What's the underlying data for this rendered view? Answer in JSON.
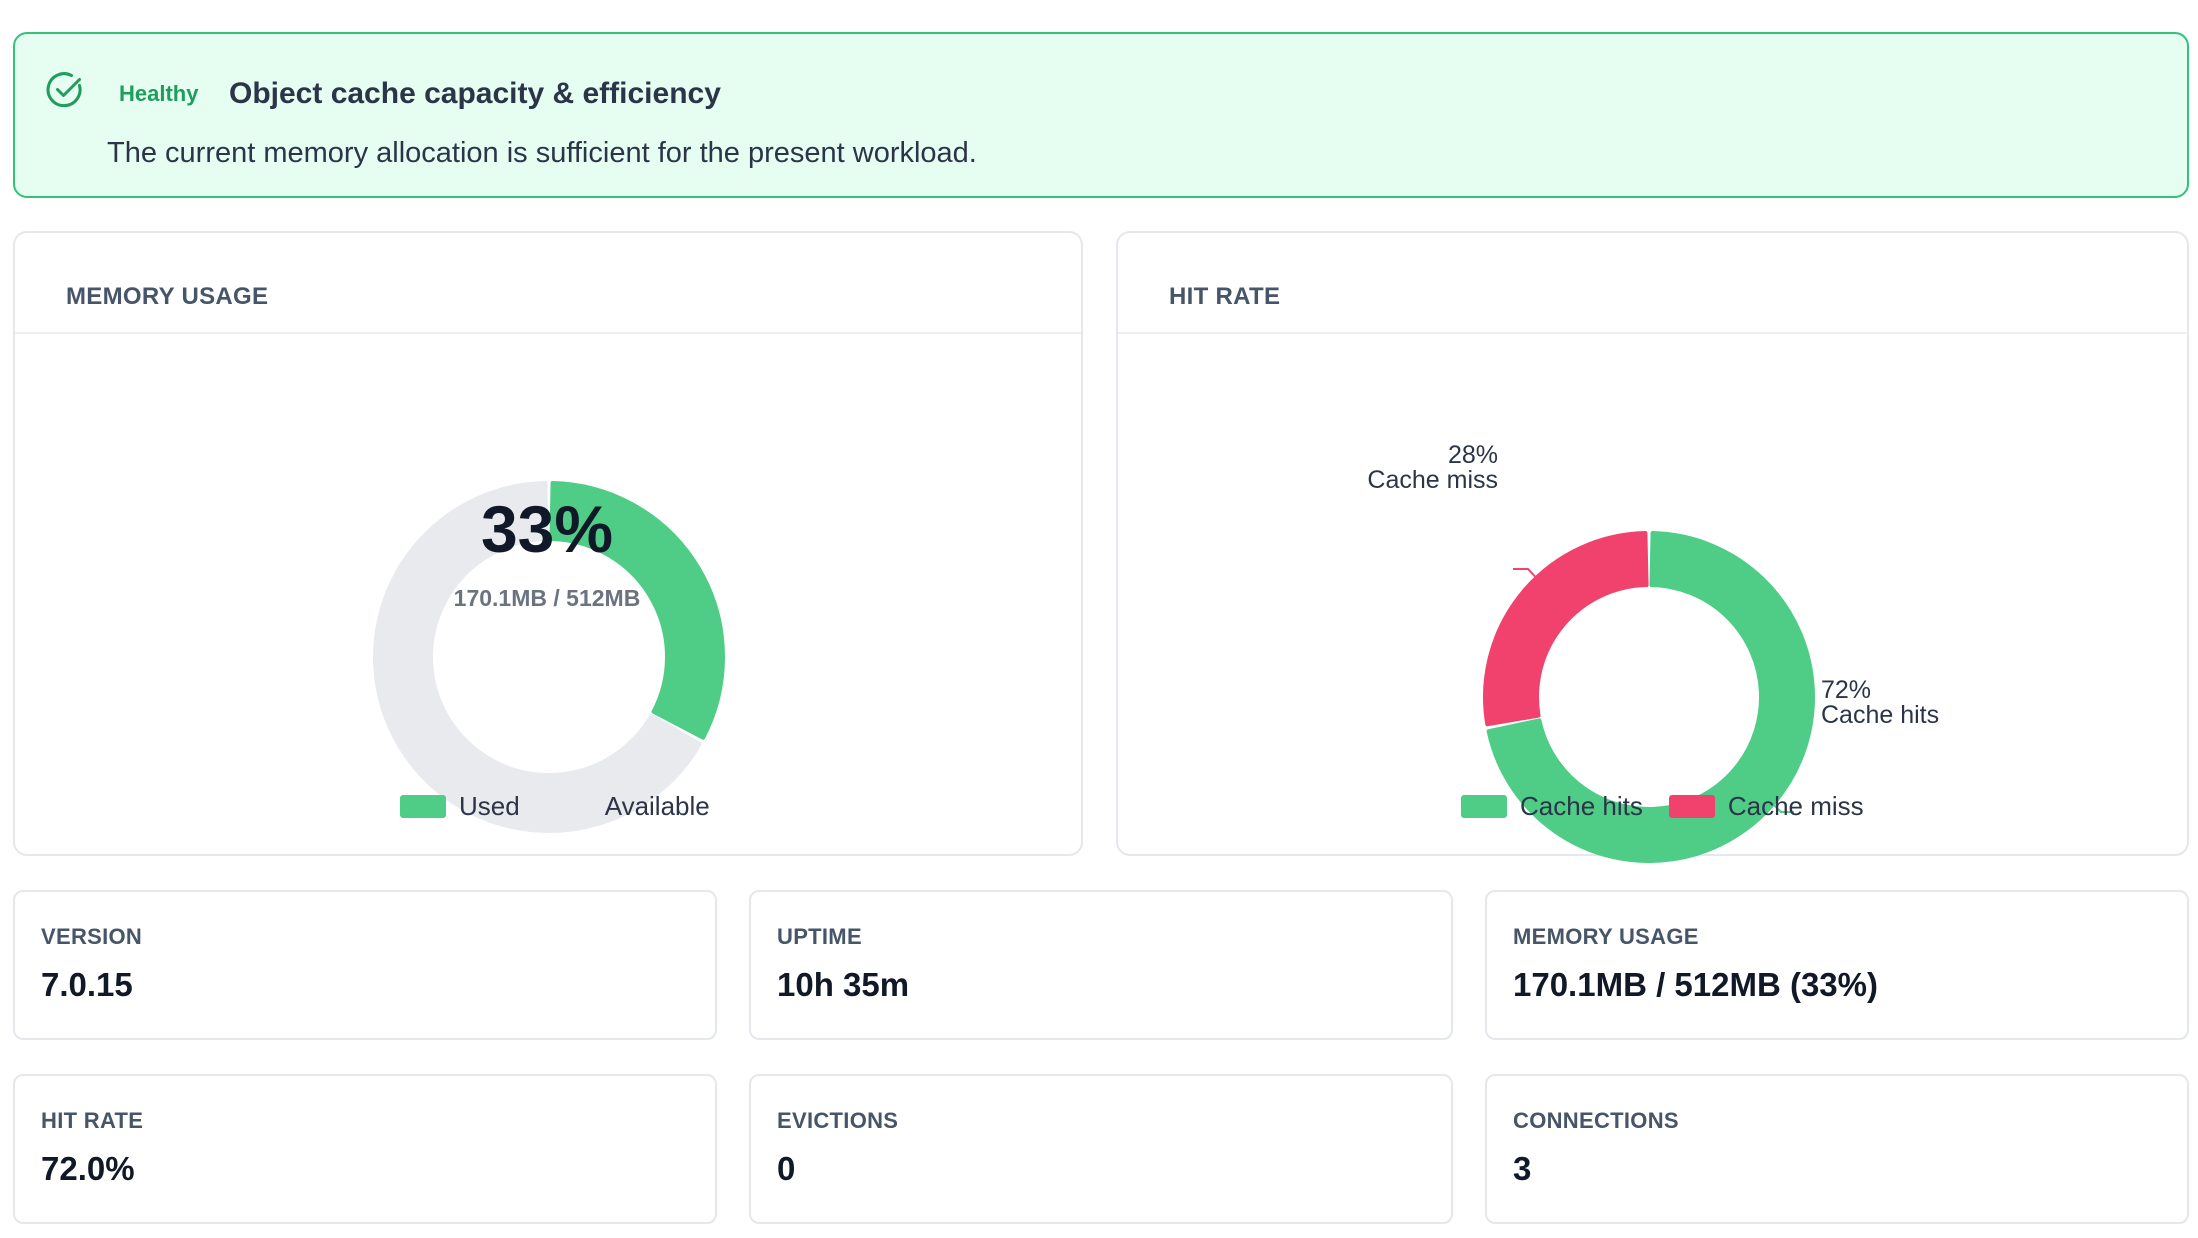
{
  "banner": {
    "status": "Healthy",
    "title": "Object cache capacity & efficiency",
    "message": "The current memory allocation is sufficient for the present workload.",
    "icon": "check-circle-icon",
    "colors": {
      "background": "#e6fdf1",
      "border": "#34c27a",
      "accent": "#1f9d5c"
    }
  },
  "memory_card": {
    "title": "MEMORY USAGE",
    "center_value": "33%",
    "center_detail": "170.1MB / 512MB",
    "legend": [
      {
        "label": "Used",
        "color": "#4fcd87"
      },
      {
        "label": "Available",
        "color": "#e8eaee"
      }
    ]
  },
  "hitrate_card": {
    "title": "HIT RATE",
    "callouts": {
      "miss": {
        "pct": "28%",
        "label": "Cache miss"
      },
      "hits": {
        "pct": "72%",
        "label": "Cache hits"
      }
    },
    "legend": [
      {
        "label": "Cache hits",
        "color": "#4fcd87"
      },
      {
        "label": "Cache miss",
        "color": "#f1426e"
      }
    ]
  },
  "chart_data": [
    {
      "type": "pie",
      "title": "MEMORY USAGE",
      "categories": [
        "Used",
        "Available"
      ],
      "values": [
        33,
        67
      ],
      "colors": [
        "#4fcd87",
        "#e8eaee"
      ],
      "style": "donut",
      "legend": "bottom"
    },
    {
      "type": "pie",
      "title": "HIT RATE",
      "categories": [
        "Cache hits",
        "Cache miss"
      ],
      "values": [
        72,
        28
      ],
      "colors": [
        "#4fcd87",
        "#f1426e"
      ],
      "style": "donut",
      "legend": "bottom"
    }
  ],
  "stats": [
    {
      "label": "VERSION",
      "value": "7.0.15"
    },
    {
      "label": "UPTIME",
      "value": "10h 35m"
    },
    {
      "label": "MEMORY USAGE",
      "value": "170.1MB / 512MB (33%)"
    },
    {
      "label": "HIT RATE",
      "value": "72.0%"
    },
    {
      "label": "EVICTIONS",
      "value": "0"
    },
    {
      "label": "CONNECTIONS",
      "value": "3"
    }
  ]
}
